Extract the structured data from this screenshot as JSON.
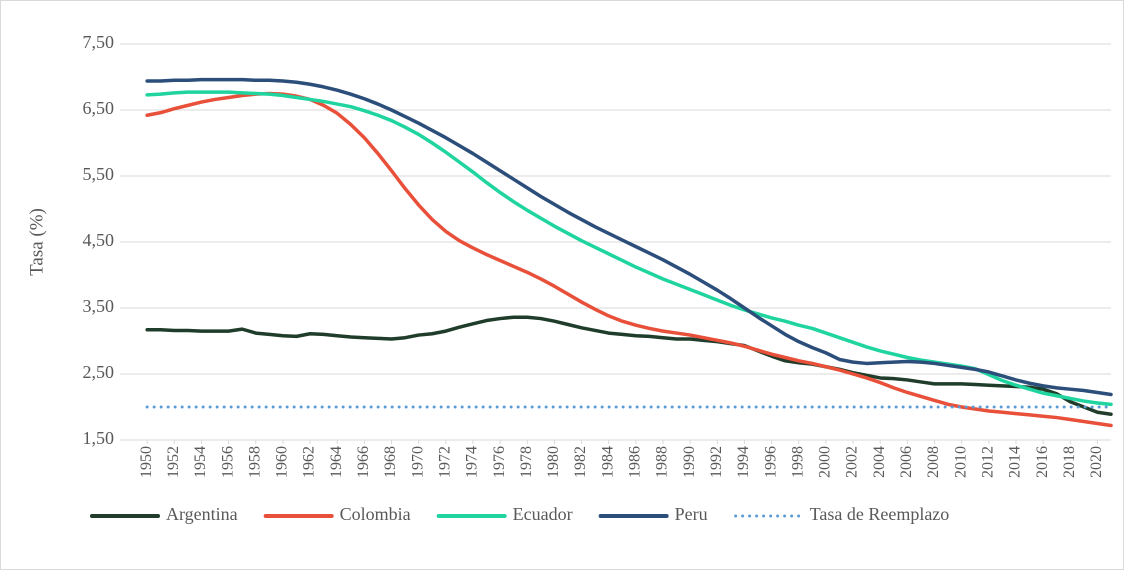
{
  "chart_data": {
    "type": "line",
    "y_label": "Tasa (%)",
    "x": [
      1950,
      1951,
      1952,
      1953,
      1954,
      1955,
      1956,
      1957,
      1958,
      1959,
      1960,
      1961,
      1962,
      1963,
      1964,
      1965,
      1966,
      1967,
      1968,
      1969,
      1970,
      1971,
      1972,
      1973,
      1974,
      1975,
      1976,
      1977,
      1978,
      1979,
      1980,
      1981,
      1982,
      1983,
      1984,
      1985,
      1986,
      1987,
      1988,
      1989,
      1990,
      1991,
      1992,
      1993,
      1994,
      1995,
      1996,
      1997,
      1998,
      1999,
      2000,
      2001,
      2002,
      2003,
      2004,
      2005,
      2006,
      2007,
      2008,
      2009,
      2010,
      2011,
      2012,
      2013,
      2014,
      2015,
      2016,
      2017,
      2018,
      2019,
      2020,
      2021
    ],
    "xlim": [
      1948,
      2021
    ],
    "xticks": [
      1950,
      1952,
      1954,
      1956,
      1958,
      1960,
      1962,
      1964,
      1966,
      1968,
      1970,
      1972,
      1974,
      1976,
      1978,
      1980,
      1982,
      1984,
      1986,
      1988,
      1990,
      1992,
      1994,
      1996,
      1998,
      2000,
      2002,
      2004,
      2006,
      2008,
      2010,
      2012,
      2014,
      2016,
      2018,
      2020
    ],
    "ylim": [
      1.5,
      7.5
    ],
    "yticks": [
      {
        "value": 1.5,
        "label": "1,50"
      },
      {
        "value": 2.5,
        "label": "2,50"
      },
      {
        "value": 3.5,
        "label": "3,50"
      },
      {
        "value": 4.5,
        "label": "4,50"
      },
      {
        "value": 5.5,
        "label": "5,50"
      },
      {
        "value": 6.5,
        "label": "6,50"
      },
      {
        "value": 7.5,
        "label": "7,50"
      }
    ],
    "grid": true,
    "legend": "bottom",
    "series": [
      {
        "name": "Argentina",
        "color": "#1f3d2a",
        "style": "solid",
        "values": [
          3.17,
          3.17,
          3.16,
          3.16,
          3.15,
          3.15,
          3.15,
          3.18,
          3.12,
          3.1,
          3.08,
          3.07,
          3.11,
          3.1,
          3.08,
          3.06,
          3.05,
          3.04,
          3.03,
          3.05,
          3.09,
          3.11,
          3.15,
          3.21,
          3.26,
          3.31,
          3.34,
          3.36,
          3.36,
          3.34,
          3.3,
          3.25,
          3.2,
          3.16,
          3.12,
          3.1,
          3.08,
          3.07,
          3.05,
          3.03,
          3.03,
          3.01,
          2.99,
          2.96,
          2.93,
          2.85,
          2.77,
          2.7,
          2.67,
          2.65,
          2.61,
          2.57,
          2.52,
          2.48,
          2.44,
          2.43,
          2.41,
          2.38,
          2.35,
          2.35,
          2.35,
          2.34,
          2.33,
          2.32,
          2.31,
          2.3,
          2.27,
          2.2,
          2.08,
          2.0,
          1.92,
          1.89
        ]
      },
      {
        "name": "Colombia",
        "color": "#e8503a",
        "style": "solid",
        "values": [
          6.42,
          6.46,
          6.52,
          6.57,
          6.62,
          6.66,
          6.69,
          6.72,
          6.74,
          6.75,
          6.74,
          6.71,
          6.66,
          6.57,
          6.45,
          6.28,
          6.08,
          5.84,
          5.58,
          5.31,
          5.06,
          4.84,
          4.66,
          4.52,
          4.41,
          4.31,
          4.22,
          4.13,
          4.04,
          3.94,
          3.83,
          3.71,
          3.59,
          3.48,
          3.38,
          3.3,
          3.24,
          3.19,
          3.15,
          3.12,
          3.09,
          3.05,
          3.01,
          2.97,
          2.92,
          2.86,
          2.8,
          2.75,
          2.7,
          2.66,
          2.61,
          2.56,
          2.5,
          2.44,
          2.37,
          2.29,
          2.22,
          2.16,
          2.1,
          2.04,
          2.0,
          1.97,
          1.94,
          1.92,
          1.9,
          1.88,
          1.86,
          1.84,
          1.81,
          1.78,
          1.75,
          1.72
        ]
      },
      {
        "name": "Ecuador",
        "color": "#1fd49f",
        "style": "solid",
        "values": [
          6.73,
          6.74,
          6.76,
          6.77,
          6.77,
          6.77,
          6.77,
          6.76,
          6.75,
          6.74,
          6.72,
          6.69,
          6.66,
          6.63,
          6.59,
          6.55,
          6.49,
          6.42,
          6.34,
          6.24,
          6.13,
          6.0,
          5.86,
          5.71,
          5.56,
          5.4,
          5.25,
          5.11,
          4.98,
          4.86,
          4.74,
          4.63,
          4.52,
          4.42,
          4.32,
          4.22,
          4.12,
          4.03,
          3.94,
          3.86,
          3.78,
          3.7,
          3.62,
          3.54,
          3.47,
          3.41,
          3.35,
          3.3,
          3.24,
          3.19,
          3.12,
          3.05,
          2.98,
          2.91,
          2.85,
          2.8,
          2.75,
          2.71,
          2.68,
          2.65,
          2.62,
          2.58,
          2.49,
          2.4,
          2.33,
          2.27,
          2.21,
          2.17,
          2.13,
          2.09,
          2.06,
          2.04
        ]
      },
      {
        "name": "Peru",
        "color": "#2c4e7a",
        "style": "solid",
        "values": [
          6.94,
          6.94,
          6.95,
          6.95,
          6.96,
          6.96,
          6.96,
          6.96,
          6.95,
          6.95,
          6.94,
          6.92,
          6.89,
          6.85,
          6.8,
          6.74,
          6.67,
          6.59,
          6.5,
          6.4,
          6.3,
          6.19,
          6.08,
          5.96,
          5.84,
          5.71,
          5.58,
          5.45,
          5.32,
          5.19,
          5.07,
          4.95,
          4.84,
          4.73,
          4.63,
          4.53,
          4.43,
          4.33,
          4.23,
          4.12,
          4.01,
          3.89,
          3.77,
          3.64,
          3.5,
          3.36,
          3.23,
          3.1,
          2.99,
          2.9,
          2.82,
          2.72,
          2.68,
          2.66,
          2.67,
          2.68,
          2.69,
          2.68,
          2.66,
          2.63,
          2.6,
          2.57,
          2.53,
          2.47,
          2.41,
          2.36,
          2.32,
          2.29,
          2.27,
          2.25,
          2.22,
          2.19
        ]
      },
      {
        "name": "Tasa de Reemplazo",
        "color": "#5b9bd5",
        "style": "dotted",
        "values": [
          2,
          2,
          2,
          2,
          2,
          2,
          2,
          2,
          2,
          2,
          2,
          2,
          2,
          2,
          2,
          2,
          2,
          2,
          2,
          2,
          2,
          2,
          2,
          2,
          2,
          2,
          2,
          2,
          2,
          2,
          2,
          2,
          2,
          2,
          2,
          2,
          2,
          2,
          2,
          2,
          2,
          2,
          2,
          2,
          2,
          2,
          2,
          2,
          2,
          2,
          2,
          2,
          2,
          2,
          2,
          2,
          2,
          2,
          2,
          2,
          2,
          2,
          2,
          2,
          2,
          2,
          2,
          2,
          2,
          2,
          2,
          2
        ]
      }
    ]
  }
}
